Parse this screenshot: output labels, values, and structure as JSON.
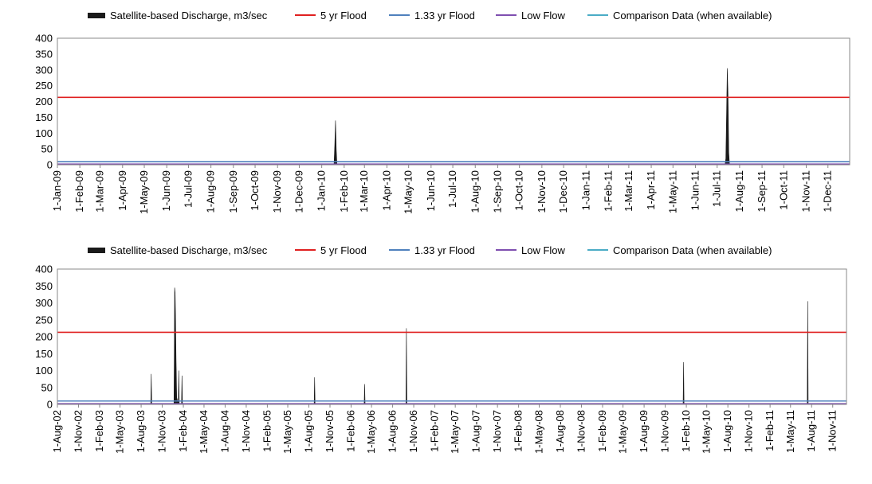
{
  "legend": {
    "discharge": "Satellite-based Discharge, m3/sec",
    "flood5": "5 yr Flood",
    "flood133": "1.33 yr Flood",
    "lowflow": "Low Flow",
    "comparison": "Comparison Data (when available)"
  },
  "colors": {
    "discharge": "#1a1a1a",
    "flood5": "#e02020",
    "flood133": "#4f81bd",
    "lowflow": "#7f4fb0",
    "comparison": "#4bacc6",
    "frame": "#888888",
    "grid": "#bbbbbb"
  },
  "chart_data": [
    {
      "type": "area",
      "title": "",
      "xlabel": "",
      "ylabel": "",
      "ylim": [
        0,
        400
      ],
      "yticks": [
        0,
        50,
        100,
        150,
        200,
        250,
        300,
        350,
        400
      ],
      "x_range": [
        "2009-01-01",
        "2011-12-31"
      ],
      "xtick_labels": [
        "1-Jan-09",
        "1-Feb-09",
        "1-Mar-09",
        "1-Apr-09",
        "1-May-09",
        "1-Jun-09",
        "1-Jul-09",
        "1-Aug-09",
        "1-Sep-09",
        "1-Oct-09",
        "1-Nov-09",
        "1-Dec-09",
        "1-Jan-10",
        "1-Feb-10",
        "1-Mar-10",
        "1-Apr-10",
        "1-May-10",
        "1-Jun-10",
        "1-Jul-10",
        "1-Aug-10",
        "1-Sep-10",
        "1-Oct-10",
        "1-Nov-10",
        "1-Dec-10",
        "1-Jan-11",
        "1-Feb-11",
        "1-Mar-11",
        "1-Apr-11",
        "1-May-11",
        "1-Jun-11",
        "1-Jul-11",
        "1-Aug-11",
        "1-Sep-11",
        "1-Oct-11",
        "1-Nov-11",
        "1-Dec-11"
      ],
      "reference_lines": {
        "flood5": 213,
        "flood133": 10,
        "lowflow": 2
      },
      "series": [
        {
          "name": "Satellite-based Discharge, m3/sec",
          "points": [
            [
              "2009-01-01",
              2
            ],
            [
              "2010-01-18",
              2
            ],
            [
              "2010-01-19",
              60
            ],
            [
              "2010-01-20",
              140
            ],
            [
              "2010-01-21",
              50
            ],
            [
              "2010-01-22",
              2
            ],
            [
              "2011-07-12",
              2
            ],
            [
              "2011-07-13",
              20
            ],
            [
              "2011-07-14",
              160
            ],
            [
              "2011-07-15",
              305
            ],
            [
              "2011-07-16",
              220
            ],
            [
              "2011-07-17",
              40
            ],
            [
              "2011-07-18",
              2
            ],
            [
              "2011-12-31",
              2
            ]
          ]
        }
      ]
    },
    {
      "type": "area",
      "title": "",
      "xlabel": "",
      "ylabel": "",
      "ylim": [
        0,
        400
      ],
      "yticks": [
        0,
        50,
        100,
        150,
        200,
        250,
        300,
        350,
        400
      ],
      "x_range": [
        "2002-08-01",
        "2011-12-31"
      ],
      "xtick_labels": [
        "1-Aug-02",
        "1-Nov-02",
        "1-Feb-03",
        "1-May-03",
        "1-Aug-03",
        "1-Nov-03",
        "1-Feb-04",
        "1-May-04",
        "1-Aug-04",
        "1-Nov-04",
        "1-Feb-05",
        "1-May-05",
        "1-Aug-05",
        "1-Nov-05",
        "1-Feb-06",
        "1-May-06",
        "1-Aug-06",
        "1-Nov-06",
        "1-Feb-07",
        "1-May-07",
        "1-Aug-07",
        "1-Nov-07",
        "1-Feb-08",
        "1-May-08",
        "1-Aug-08",
        "1-Nov-08",
        "1-Feb-09",
        "1-May-09",
        "1-Aug-09",
        "1-Nov-09",
        "1-Feb-10",
        "1-May-10",
        "1-Aug-10",
        "1-Nov-10",
        "1-Feb-11",
        "1-May-11",
        "1-Aug-11",
        "1-Nov-11"
      ],
      "reference_lines": {
        "flood5": 213,
        "flood133": 10,
        "lowflow": 2
      },
      "series": [
        {
          "name": "Satellite-based Discharge, m3/sec",
          "points": [
            [
              "2002-08-01",
              2
            ],
            [
              "2003-09-12",
              2
            ],
            [
              "2003-09-14",
              90
            ],
            [
              "2003-09-16",
              2
            ],
            [
              "2003-12-22",
              2
            ],
            [
              "2003-12-24",
              200
            ],
            [
              "2003-12-25",
              345
            ],
            [
              "2003-12-27",
              330
            ],
            [
              "2003-12-29",
              250
            ],
            [
              "2003-12-31",
              140
            ],
            [
              "2004-01-03",
              20
            ],
            [
              "2004-01-10",
              2
            ],
            [
              "2004-01-12",
              100
            ],
            [
              "2004-01-14",
              2
            ],
            [
              "2004-01-24",
              2
            ],
            [
              "2004-01-26",
              85
            ],
            [
              "2004-01-28",
              2
            ],
            [
              "2005-08-24",
              2
            ],
            [
              "2005-08-26",
              80
            ],
            [
              "2005-08-28",
              2
            ],
            [
              "2006-03-30",
              2
            ],
            [
              "2006-04-01",
              60
            ],
            [
              "2006-04-03",
              2
            ],
            [
              "2006-09-28",
              2
            ],
            [
              "2006-09-30",
              225
            ],
            [
              "2006-10-02",
              2
            ],
            [
              "2010-01-18",
              2
            ],
            [
              "2010-01-20",
              125
            ],
            [
              "2010-01-22",
              2
            ],
            [
              "2011-07-13",
              2
            ],
            [
              "2011-07-15",
              305
            ],
            [
              "2011-07-17",
              2
            ],
            [
              "2011-12-31",
              2
            ]
          ]
        }
      ]
    }
  ]
}
